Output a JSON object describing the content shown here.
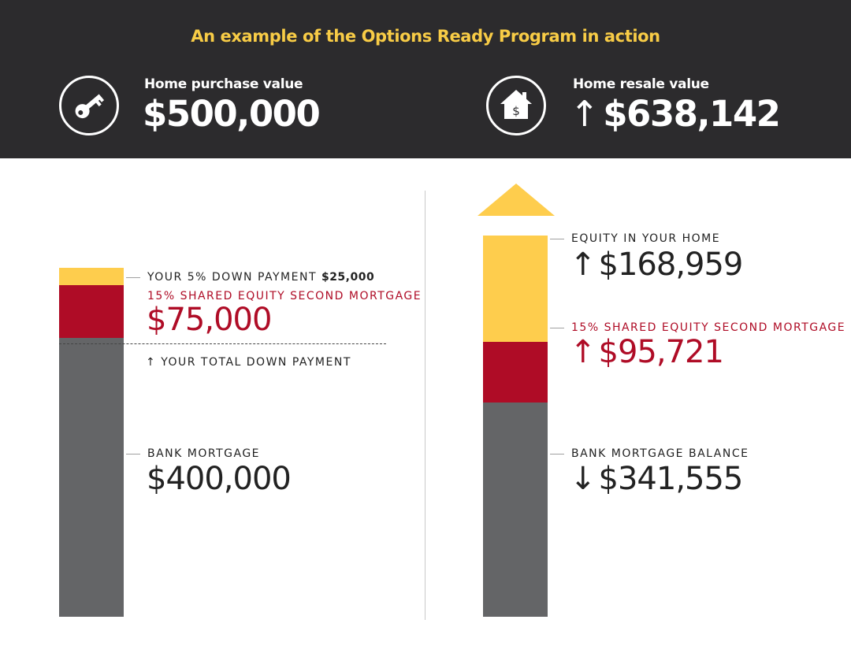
{
  "header": {
    "title": "An example of the Options Ready Program in action",
    "purchase": {
      "label": "Home purchase value",
      "value": "$500,000",
      "icon": "key-icon"
    },
    "resale": {
      "label": "Home resale value",
      "arrow": "↑",
      "value": "$638,142",
      "icon": "house-dollar-icon"
    }
  },
  "colors": {
    "dark": "#2c2b2d",
    "yellow": "#fecd4d",
    "red": "#af0c26",
    "gray": "#646567",
    "title": "#f8cc46"
  },
  "chart_data": [
    {
      "type": "bar",
      "stacked": true,
      "categories": [
        "Purchase"
      ],
      "series": [
        {
          "name": "BANK MORTGAGE",
          "values": [
            400000
          ]
        },
        {
          "name": "15% SHARED EQUITY SECOND MORTGAGE",
          "values": [
            75000
          ]
        },
        {
          "name": "YOUR 5% DOWN PAYMENT",
          "values": [
            25000
          ]
        }
      ],
      "total": 500000
    },
    {
      "type": "bar",
      "stacked": true,
      "categories": [
        "Resale"
      ],
      "series": [
        {
          "name": "BANK MORTGAGE BALANCE",
          "values": [
            341555
          ]
        },
        {
          "name": "15% SHARED EQUITY SECOND MORTGAGE",
          "values": [
            95721
          ]
        },
        {
          "name": "EQUITY IN YOUR HOME",
          "values": [
            168959
          ]
        }
      ],
      "total": 638142
    }
  ],
  "left": {
    "down_payment_label": "YOUR 5% DOWN PAYMENT",
    "down_payment_value": "$25,000",
    "shared_label": "15% SHARED EQUITY SECOND MORTGAGE",
    "shared_value": "$75,000",
    "total_arrow": "↑",
    "total_label": "YOUR TOTAL DOWN PAYMENT",
    "bank_label": "BANK MORTGAGE",
    "bank_value": "$400,000"
  },
  "right": {
    "equity_label": "EQUITY IN YOUR HOME",
    "equity_arrow": "↑",
    "equity_value": "$168,959",
    "shared_label": "15% SHARED EQUITY SECOND MORTGAGE",
    "shared_arrow": "↑",
    "shared_value": "$95,721",
    "bank_label": "BANK MORTGAGE BALANCE",
    "bank_arrow": "↓",
    "bank_value": "$341,555"
  }
}
